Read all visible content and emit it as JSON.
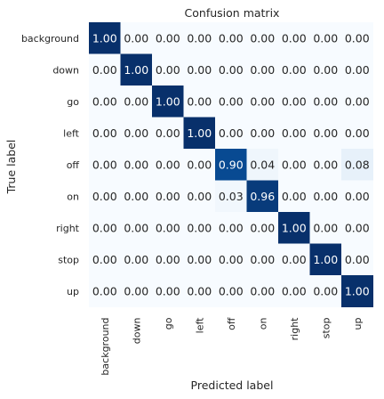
{
  "chart_data": {
    "type": "heatmap",
    "title": "Confusion matrix",
    "xlabel": "Predicted label",
    "ylabel": "True label",
    "labels": [
      "background",
      "down",
      "go",
      "left",
      "off",
      "on",
      "right",
      "stop",
      "up"
    ],
    "values": [
      [
        "1.00",
        "0.00",
        "0.00",
        "0.00",
        "0.00",
        "0.00",
        "0.00",
        "0.00",
        "0.00"
      ],
      [
        "0.00",
        "1.00",
        "0.00",
        "0.00",
        "0.00",
        "0.00",
        "0.00",
        "0.00",
        "0.00"
      ],
      [
        "0.00",
        "0.00",
        "1.00",
        "0.00",
        "0.00",
        "0.00",
        "0.00",
        "0.00",
        "0.00"
      ],
      [
        "0.00",
        "0.00",
        "0.00",
        "1.00",
        "0.00",
        "0.00",
        "0.00",
        "0.00",
        "0.00"
      ],
      [
        "0.00",
        "0.00",
        "0.00",
        "0.00",
        "0.90",
        "0.04",
        "0.00",
        "0.00",
        "0.08"
      ],
      [
        "0.00",
        "0.00",
        "0.00",
        "0.00",
        "0.03",
        "0.96",
        "0.00",
        "0.00",
        "0.00"
      ],
      [
        "0.00",
        "0.00",
        "0.00",
        "0.00",
        "0.00",
        "0.00",
        "1.00",
        "0.00",
        "0.00"
      ],
      [
        "0.00",
        "0.00",
        "0.00",
        "0.00",
        "0.00",
        "0.00",
        "0.00",
        "1.00",
        "0.00"
      ],
      [
        "0.00",
        "0.00",
        "0.00",
        "0.00",
        "0.00",
        "0.00",
        "0.00",
        "0.00",
        "1.00"
      ]
    ],
    "vlim": [
      0,
      1
    ],
    "colormap": "Blues",
    "color_low": "#f7fbff",
    "color_high": "#08306b",
    "text_dark": "#262626",
    "text_light": "#ffffff",
    "grid": false
  }
}
